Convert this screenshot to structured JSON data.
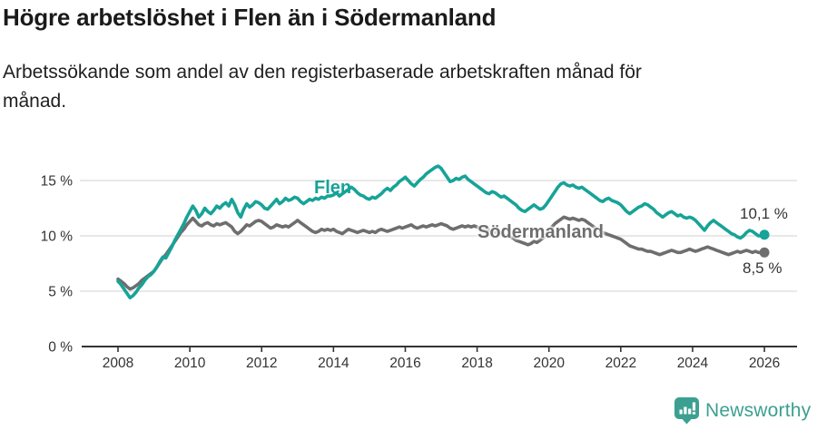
{
  "header": {
    "title": "Högre arbetslöshet i Flen än i Södermanland",
    "subtitle_line1": "Arbetssökande som andel av den registerbaserade arbetskraften månad för",
    "subtitle_line2": "månad."
  },
  "colors": {
    "flen": "#17a398",
    "sodermanland": "#6e6e6e",
    "axis": "#333333",
    "grid": "#d9d9d9",
    "text": "#333333",
    "brand": "#3ba091"
  },
  "footer": {
    "brand_name": "Newsworthy",
    "brand_icon": "bar-chart-speech-bubble"
  },
  "chart_data": {
    "type": "line",
    "title": "Högre arbetslöshet i Flen än i Södermanland",
    "xlabel": "",
    "ylabel": "",
    "grid": "horizontal",
    "legend_position": "inline-labels",
    "x_start_year": 2008,
    "x_step_months": 1,
    "x_end": "2026-01",
    "ylim": [
      0,
      17.5
    ],
    "y_ticks": [
      {
        "value": 0,
        "label": "0 %"
      },
      {
        "value": 5,
        "label": "5 %"
      },
      {
        "value": 10,
        "label": "10 %"
      },
      {
        "value": 15,
        "label": "15 %"
      }
    ],
    "x_ticks": [
      {
        "year": 2008,
        "label": "2008"
      },
      {
        "year": 2010,
        "label": "2010"
      },
      {
        "year": 2012,
        "label": "2012"
      },
      {
        "year": 2014,
        "label": "2014"
      },
      {
        "year": 2016,
        "label": "2016"
      },
      {
        "year": 2018,
        "label": "2018"
      },
      {
        "year": 2020,
        "label": "2020"
      },
      {
        "year": 2022,
        "label": "2022"
      },
      {
        "year": 2024,
        "label": "2024"
      },
      {
        "year": 2026,
        "label": "2026"
      }
    ],
    "series": [
      {
        "name": "Flen",
        "color": "#17a398",
        "end_label": "10,1 %",
        "end_value": 10.1,
        "values": [
          5.9,
          5.6,
          5.2,
          4.8,
          4.4,
          4.6,
          4.9,
          5.3,
          5.6,
          6.0,
          6.3,
          6.5,
          6.8,
          7.2,
          7.7,
          8.1,
          8.0,
          8.5,
          9.0,
          9.6,
          10.1,
          10.6,
          11.1,
          11.7,
          12.2,
          12.7,
          12.3,
          11.7,
          12.0,
          12.5,
          12.2,
          12.0,
          12.3,
          12.7,
          12.5,
          12.8,
          13.0,
          12.7,
          13.3,
          12.8,
          12.1,
          11.7,
          12.4,
          12.9,
          12.6,
          12.8,
          13.1,
          13.0,
          12.8,
          12.5,
          12.4,
          12.7,
          13.0,
          13.3,
          12.9,
          13.1,
          13.4,
          13.2,
          13.3,
          13.5,
          13.4,
          13.1,
          12.9,
          13.1,
          13.3,
          13.2,
          13.4,
          13.3,
          13.5,
          13.4,
          13.6,
          13.6,
          13.7,
          13.9,
          13.6,
          13.8,
          14.0,
          14.2,
          14.4,
          14.2,
          13.9,
          13.7,
          13.6,
          13.4,
          13.3,
          13.5,
          13.4,
          13.6,
          13.8,
          14.1,
          14.3,
          14.1,
          14.4,
          14.6,
          14.9,
          15.1,
          15.3,
          15.0,
          14.7,
          14.5,
          14.8,
          15.1,
          15.3,
          15.6,
          15.8,
          16.0,
          16.2,
          16.3,
          16.1,
          15.7,
          15.3,
          14.9,
          15.0,
          15.2,
          15.1,
          15.3,
          15.4,
          15.1,
          14.9,
          14.7,
          14.5,
          14.3,
          14.1,
          13.9,
          13.8,
          14.0,
          13.9,
          13.7,
          13.5,
          13.6,
          13.4,
          13.2,
          13.0,
          12.8,
          12.5,
          12.3,
          12.2,
          12.4,
          12.6,
          12.8,
          12.6,
          12.4,
          12.5,
          12.8,
          13.2,
          13.6,
          14.0,
          14.4,
          14.7,
          14.8,
          14.6,
          14.5,
          14.6,
          14.4,
          14.3,
          14.4,
          14.2,
          14.0,
          13.8,
          13.6,
          13.4,
          13.2,
          13.1,
          13.3,
          13.4,
          13.2,
          13.1,
          13.0,
          12.8,
          12.5,
          12.2,
          12.0,
          12.2,
          12.4,
          12.6,
          12.7,
          12.9,
          12.8,
          12.6,
          12.4,
          12.1,
          11.9,
          11.7,
          11.9,
          12.1,
          12.2,
          12.0,
          11.8,
          11.9,
          11.7,
          11.6,
          11.7,
          11.6,
          11.4,
          11.1,
          10.8,
          10.5,
          10.9,
          11.2,
          11.4,
          11.2,
          11.0,
          10.8,
          10.6,
          10.4,
          10.2,
          10.1,
          9.9,
          9.8,
          10.0,
          10.3,
          10.5,
          10.4,
          10.2,
          10.0,
          10.0,
          10.1
        ]
      },
      {
        "name": "Södermanland",
        "color": "#6e6e6e",
        "end_label": "8,5 %",
        "end_value": 8.5,
        "values": [
          6.1,
          5.9,
          5.7,
          5.4,
          5.2,
          5.3,
          5.5,
          5.7,
          6.0,
          6.2,
          6.4,
          6.6,
          6.8,
          7.2,
          7.6,
          8.0,
          8.3,
          8.7,
          9.1,
          9.5,
          9.9,
          10.3,
          10.6,
          11.0,
          11.3,
          11.6,
          11.3,
          11.0,
          10.9,
          11.1,
          11.2,
          11.0,
          10.9,
          11.1,
          11.0,
          11.1,
          11.2,
          11.0,
          10.8,
          10.4,
          10.2,
          10.4,
          10.7,
          11.0,
          10.9,
          11.1,
          11.3,
          11.4,
          11.3,
          11.1,
          10.9,
          10.7,
          10.8,
          11.0,
          10.9,
          10.8,
          10.9,
          10.8,
          11.0,
          11.2,
          11.4,
          11.2,
          11.0,
          10.8,
          10.6,
          10.4,
          10.3,
          10.4,
          10.6,
          10.5,
          10.6,
          10.5,
          10.6,
          10.4,
          10.3,
          10.2,
          10.4,
          10.6,
          10.5,
          10.4,
          10.3,
          10.4,
          10.5,
          10.4,
          10.3,
          10.4,
          10.3,
          10.5,
          10.6,
          10.5,
          10.4,
          10.5,
          10.6,
          10.7,
          10.8,
          10.7,
          10.8,
          10.9,
          11.0,
          10.8,
          10.7,
          10.8,
          10.9,
          10.8,
          10.9,
          11.0,
          10.9,
          11.0,
          11.1,
          11.0,
          10.9,
          10.7,
          10.6,
          10.7,
          10.8,
          10.9,
          10.8,
          10.9,
          10.8,
          10.9,
          10.8,
          10.7,
          10.6,
          10.7,
          10.5,
          10.4,
          10.3,
          10.4,
          10.2,
          10.1,
          10.0,
          9.9,
          9.8,
          9.6,
          9.5,
          9.4,
          9.3,
          9.2,
          9.3,
          9.5,
          9.4,
          9.6,
          9.8,
          10.1,
          10.5,
          10.8,
          11.1,
          11.3,
          11.5,
          11.7,
          11.6,
          11.5,
          11.6,
          11.5,
          11.4,
          11.5,
          11.4,
          11.2,
          11.0,
          10.8,
          10.6,
          10.4,
          10.3,
          10.2,
          10.1,
          10.0,
          9.9,
          9.8,
          9.7,
          9.5,
          9.3,
          9.1,
          9.0,
          8.9,
          8.8,
          8.8,
          8.7,
          8.6,
          8.6,
          8.5,
          8.4,
          8.3,
          8.4,
          8.5,
          8.6,
          8.7,
          8.6,
          8.5,
          8.5,
          8.6,
          8.7,
          8.8,
          8.7,
          8.6,
          8.7,
          8.8,
          8.9,
          9.0,
          8.9,
          8.8,
          8.7,
          8.6,
          8.5,
          8.4,
          8.3,
          8.4,
          8.5,
          8.6,
          8.5,
          8.6,
          8.7,
          8.6,
          8.5,
          8.6,
          8.5,
          8.5,
          8.5
        ]
      }
    ]
  }
}
